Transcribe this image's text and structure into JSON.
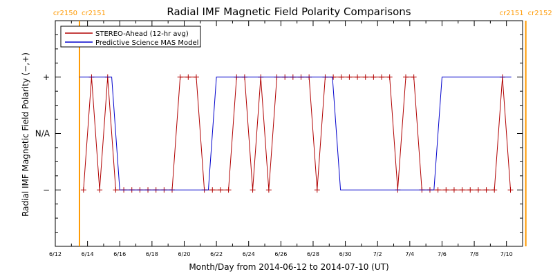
{
  "chart_data": {
    "type": "line",
    "title": "Radial IMF Magnetic Field Polarity Comparisons",
    "xlabel": "Month/Day from 2014-06-12 to 2014-07-10 (UT)",
    "ylabel": "Radial IMF Magnetic Field Polarity (−,+)",
    "x_ticks": [
      "6/12",
      "6/14",
      "6/16",
      "6/18",
      "6/20",
      "6/22",
      "6/24",
      "6/26",
      "6/28",
      "6/30",
      "7/2",
      "7/4",
      "7/6",
      "7/8",
      "7/10"
    ],
    "y_ticks": [
      "+",
      "N/A",
      "−"
    ],
    "x_range_days": [
      0,
      29
    ],
    "y_range": [
      -2,
      2
    ],
    "y_encoding": {
      "+": 1,
      "N/A": 0,
      "−": -1
    },
    "x_unit": "days since 2014-06-12 00:00 UT",
    "grid": false,
    "legend_position": "top-left",
    "carrington_markers": [
      {
        "day": 1.5,
        "left_label": "cr2150",
        "right_label": "cr2151",
        "color": "#ff9900"
      },
      {
        "day": 29.2,
        "left_label": "cr2151",
        "right_label": "cr2152",
        "color": "#ff9900"
      }
    ],
    "series": [
      {
        "name": "STEREO-Ahead (12-hr avg)",
        "color": "#b00000",
        "marker": "plus",
        "x": [
          1.75,
          2.25,
          2.75,
          3.25,
          3.75,
          4.25,
          4.75,
          5.25,
          5.75,
          6.25,
          6.75,
          7.25,
          7.75,
          8.25,
          8.75,
          9.25,
          9.75,
          10.25,
          10.75,
          11.25,
          11.75,
          12.25,
          12.75,
          13.25,
          13.75,
          14.25,
          14.75,
          15.25,
          15.75,
          16.25,
          16.75,
          17.25,
          17.75,
          18.25,
          18.75,
          19.25,
          19.75,
          20.25,
          20.75,
          21.25,
          21.75,
          22.25,
          22.75,
          23.25,
          23.75,
          24.25,
          24.75,
          25.25,
          25.75,
          26.25,
          26.75,
          27.25,
          27.75,
          28.25
        ],
        "y": [
          -1,
          1,
          -1,
          1,
          -1,
          -1,
          -1,
          -1,
          -1,
          -1,
          -1,
          -1,
          1,
          1,
          1,
          -1,
          -1,
          -1,
          -1,
          1,
          1,
          -1,
          1,
          -1,
          1,
          1,
          1,
          1,
          1,
          -1,
          1,
          1,
          1,
          1,
          1,
          1,
          1,
          1,
          1,
          -1,
          1,
          1,
          -1,
          -1,
          -1,
          -1,
          -1,
          -1,
          -1,
          -1,
          -1,
          -1,
          1,
          -1
        ]
      },
      {
        "name": "Predictive Science MAS Model",
        "color": "#0000cc",
        "x": [
          1.5,
          3.5,
          4.0,
          9.5,
          10.0,
          17.2,
          17.7,
          23.5,
          24.0,
          28.3
        ],
        "y": [
          1,
          1,
          -1,
          -1,
          1,
          1,
          -1,
          -1,
          1,
          1
        ]
      }
    ]
  },
  "legend": {
    "entries": [
      "STEREO-Ahead (12-hr avg)",
      "Predictive Science MAS Model"
    ]
  }
}
